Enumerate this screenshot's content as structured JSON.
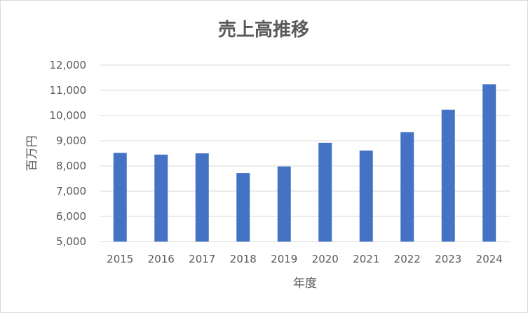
{
  "chart_data": {
    "type": "bar",
    "title": "売上高推移",
    "xlabel": "年度",
    "ylabel": "百万円",
    "categories": [
      "2015",
      "2016",
      "2017",
      "2018",
      "2019",
      "2020",
      "2021",
      "2022",
      "2023",
      "2024"
    ],
    "values": [
      8520,
      8450,
      8500,
      7720,
      7980,
      8920,
      8610,
      9340,
      10230,
      11240
    ],
    "ylim": [
      5000,
      12000
    ],
    "yticks": [
      5000,
      6000,
      7000,
      8000,
      9000,
      10000,
      11000,
      12000
    ],
    "ytick_labels": [
      "5,000",
      "6,000",
      "7,000",
      "8,000",
      "9,000",
      "10,000",
      "11,000",
      "12,000"
    ],
    "grid": true,
    "legend": "none",
    "colors": {
      "bar": "#4472c4",
      "grid": "#d9d9d9",
      "text": "#595959"
    }
  }
}
